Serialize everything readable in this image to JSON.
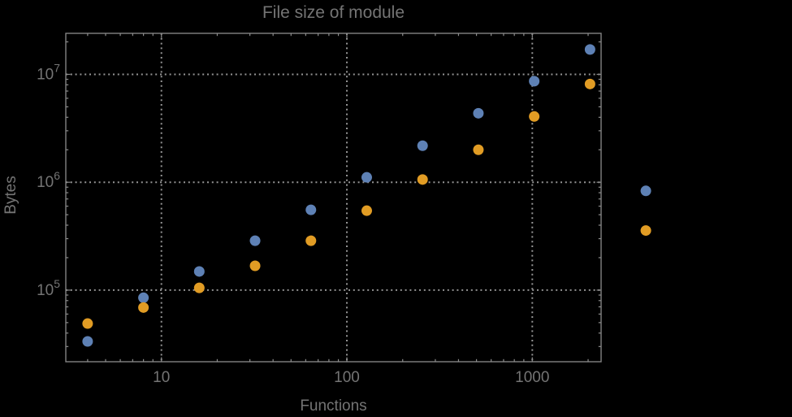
{
  "window": {
    "background": "#000000"
  },
  "chart_data": {
    "type": "scatter",
    "title": "File size of module",
    "xlabel": "Functions",
    "ylabel": "Bytes",
    "x_scale": "log",
    "y_scale": "log",
    "xlim": [
      3.05,
      2350
    ],
    "ylim": [
      21700,
      24000000
    ],
    "grid": "dotted",
    "frame": true,
    "legend_position": "none",
    "x_ticks": [
      {
        "value": 10,
        "label": "10"
      },
      {
        "value": 100,
        "label": "100"
      },
      {
        "value": 1000,
        "label": "1000"
      }
    ],
    "y_ticks": [
      {
        "value": 100000,
        "base": "10",
        "exponent": "5"
      },
      {
        "value": 1000000,
        "base": "10",
        "exponent": "6"
      },
      {
        "value": 10000000,
        "base": "10",
        "exponent": "7"
      }
    ],
    "series": [
      {
        "name": "blue-series",
        "color": "#5E81B5",
        "points": [
          [
            4,
            33500
          ],
          [
            8,
            85000
          ],
          [
            16,
            149000
          ],
          [
            32,
            287000
          ],
          [
            64,
            555000
          ],
          [
            128,
            1110000
          ],
          [
            256,
            2180000
          ],
          [
            512,
            4360000
          ],
          [
            1024,
            8640000
          ],
          [
            2048,
            17000000
          ],
          [
            4096,
            832000
          ]
        ]
      },
      {
        "name": "orange-series",
        "color": "#E19C24",
        "points": [
          [
            4,
            49000
          ],
          [
            8,
            69000
          ],
          [
            16,
            105000
          ],
          [
            32,
            168000
          ],
          [
            64,
            287000
          ],
          [
            128,
            545000
          ],
          [
            256,
            1060000
          ],
          [
            512,
            2000000
          ],
          [
            1024,
            4070000
          ],
          [
            2048,
            8140000
          ],
          [
            4096,
            357000
          ]
        ]
      }
    ],
    "styles": {
      "background": "#000000",
      "frame_color": "#8c8c8c",
      "grid_color": "#939393",
      "text_color": "#747474",
      "marker_radius": 6.5
    }
  }
}
